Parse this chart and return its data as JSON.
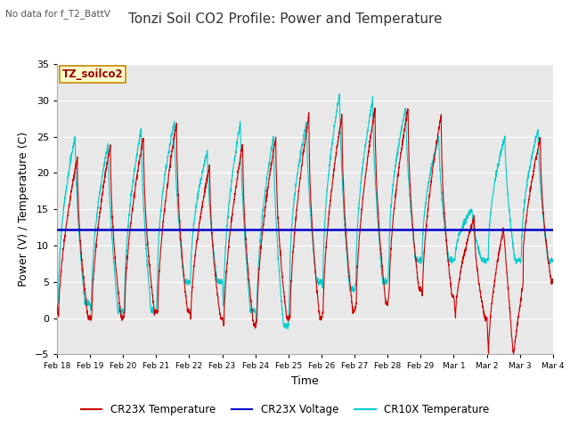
{
  "title": "Tonzi Soil CO2 Profile: Power and Temperature",
  "subtitle": "No data for f_T2_BattV",
  "ylabel": "Power (V) / Temperature (C)",
  "xlabel": "Time",
  "ylim": [
    -5,
    35
  ],
  "yticks": [
    -5,
    0,
    5,
    10,
    15,
    20,
    25,
    30,
    35
  ],
  "x_tick_labels": [
    "Feb 18",
    "Feb 19",
    "Feb 20",
    "Feb 21",
    "Feb 22",
    "Feb 23",
    "Feb 24",
    "Feb 25",
    "Feb 26",
    "Feb 27",
    "Feb 28",
    "Feb 29",
    "Mar 1",
    "Mar 2",
    "Mar 3",
    "Mar 4"
  ],
  "voltage_level": 12.2,
  "legend_label_box": "TZ_soilco2",
  "cr23x_color": "#cc0000",
  "cr10x_color": "#00cccc",
  "voltage_color": "#0000cc",
  "bg_color": "#ffffff",
  "plot_bg_color": "#e8e8e8",
  "title_fontsize": 11,
  "axis_fontsize": 9,
  "tick_fontsize": 8,
  "peak_heights_cr23x": [
    22,
    24,
    25,
    27,
    21,
    24,
    25,
    28,
    28,
    29,
    29,
    28,
    14,
    15,
    25
  ],
  "peak_heights_cr10x": [
    25,
    24,
    26,
    27,
    23,
    27,
    25,
    27,
    31,
    30,
    29,
    25,
    15,
    25,
    26
  ],
  "min_vals_cr23x": [
    0,
    0,
    1,
    1,
    0,
    -1,
    0,
    0,
    1,
    2,
    4,
    3,
    0,
    -5,
    5
  ],
  "min_vals_cr10x": [
    2,
    1,
    1,
    5,
    5,
    1,
    -1,
    5,
    4,
    5,
    8,
    8,
    8,
    8,
    8
  ]
}
